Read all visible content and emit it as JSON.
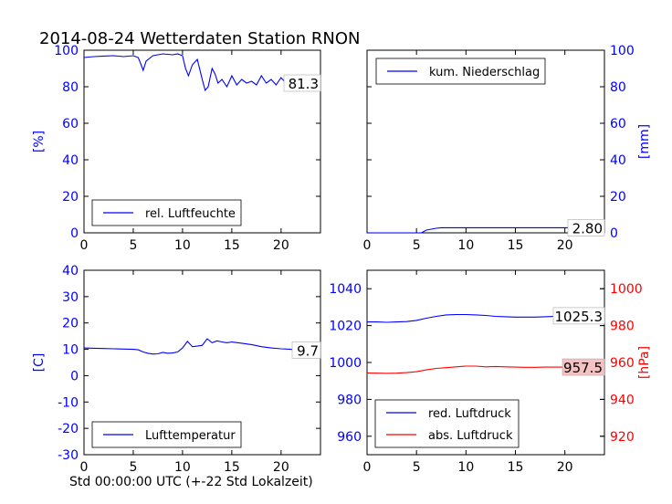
{
  "title": "2014-08-24 Wetterdaten Station RNON",
  "xlabel": "Std 00:00:00 UTC (+-22 Std Lokalzeit)",
  "colors": {
    "blue": "#0000ff",
    "red": "#ff0000",
    "value_bg_red": "#f4c2c2"
  },
  "chart_data": [
    {
      "type": "line",
      "name": "humidity",
      "ylabel": "[%]",
      "ylabel_side": "left",
      "xlim": [
        0,
        24
      ],
      "ylim": [
        0,
        100
      ],
      "xticks": [
        "0",
        "5",
        "10",
        "15",
        "20"
      ],
      "yticks": [
        "0",
        "20",
        "40",
        "60",
        "80",
        "100"
      ],
      "legend_position": "lower-left",
      "series": [
        {
          "name": "rel. Luftfeuchte",
          "color": "#0000ff",
          "x": [
            0,
            1,
            2,
            3,
            4,
            5,
            5.5,
            5.8,
            6.0,
            6.3,
            7,
            8,
            9,
            9.5,
            10,
            10.3,
            10.6,
            11,
            11.5,
            12,
            12.3,
            12.6,
            13,
            13.3,
            13.6,
            14,
            14.5,
            15,
            15.5,
            16,
            16.5,
            17,
            17.5,
            18,
            18.5,
            19,
            19.5,
            20,
            20.5,
            21,
            21.5,
            22,
            22.5,
            23,
            23.5,
            24
          ],
          "y": [
            96,
            96.5,
            96.8,
            97,
            96.5,
            97,
            96,
            92,
            89,
            94,
            97,
            98,
            97.5,
            98,
            97,
            90,
            86,
            92,
            95,
            84,
            78,
            80,
            90,
            87,
            82,
            84,
            80,
            86,
            81,
            84,
            82,
            83,
            81,
            86,
            82,
            84,
            81,
            85,
            82,
            84,
            83,
            82,
            85,
            81,
            83,
            82
          ]
        }
      ],
      "value_label": "81.3"
    },
    {
      "type": "line",
      "name": "precipitation",
      "ylabel": "[mm]",
      "ylabel_side": "right",
      "xlim": [
        0,
        24
      ],
      "ylim": [
        0,
        100
      ],
      "xticks": [
        "0",
        "5",
        "10",
        "15",
        "20"
      ],
      "yticks": [
        "0",
        "20",
        "40",
        "60",
        "80",
        "100"
      ],
      "legend_position": "upper-left",
      "series": [
        {
          "name": "kum. Niederschlag",
          "color": "#0000ff",
          "x": [
            0,
            5.5,
            6,
            6.5,
            7,
            7.5,
            24
          ],
          "y": [
            0,
            0,
            1.5,
            2.0,
            2.5,
            2.8,
            2.8
          ]
        }
      ],
      "value_label": "2.80"
    },
    {
      "type": "line",
      "name": "temperature",
      "ylabel": "[C]",
      "ylabel_side": "left",
      "xlim": [
        0,
        24
      ],
      "ylim": [
        -30,
        40
      ],
      "xticks": [
        "0",
        "5",
        "10",
        "15",
        "20"
      ],
      "yticks": [
        "-30",
        "-20",
        "-10",
        "0",
        "10",
        "20",
        "30",
        "40"
      ],
      "legend_position": "lower-left",
      "series": [
        {
          "name": "Lufttemperatur",
          "color": "#0000ff",
          "x": [
            0,
            1,
            2,
            3,
            4,
            5,
            5.5,
            6,
            6.5,
            7,
            7.5,
            8,
            8.5,
            9,
            9.5,
            10,
            10.5,
            11,
            11.5,
            12,
            12.5,
            13,
            13.5,
            14,
            14.5,
            15,
            16,
            17,
            18,
            19,
            20,
            21,
            22,
            23,
            24
          ],
          "y": [
            10.5,
            10.4,
            10.3,
            10.2,
            10.1,
            10,
            9.8,
            9,
            8.5,
            8.2,
            8.3,
            8.8,
            8.5,
            8.6,
            9,
            10.5,
            13,
            11,
            11.2,
            11.5,
            14,
            12.5,
            13.2,
            12.8,
            12.5,
            12.8,
            12.3,
            11.8,
            11,
            10.5,
            10.2,
            10,
            9.8,
            9.7,
            9.7
          ]
        }
      ],
      "value_label": "9.7"
    },
    {
      "type": "line",
      "name": "pressure",
      "ylabel": "[hPa]",
      "ylabel_side": "right",
      "xlim": [
        0,
        24
      ],
      "ylim": [
        950,
        1050
      ],
      "ylim_right": [
        910,
        1010
      ],
      "xticks": [
        "0",
        "5",
        "10",
        "15",
        "20"
      ],
      "yticks": [
        "960",
        "980",
        "1000",
        "1020",
        "1040"
      ],
      "yticks_right": [
        "920",
        "940",
        "960",
        "980",
        "1000"
      ],
      "legend_position": "lower-left",
      "series": [
        {
          "name": "red. Luftdruck",
          "color": "#0000ff",
          "axis": "left",
          "x": [
            0,
            1,
            2,
            3,
            4,
            5,
            6,
            7,
            8,
            9,
            10,
            11,
            12,
            13,
            14,
            15,
            16,
            17,
            18,
            19,
            20,
            21,
            22,
            23,
            24
          ],
          "y": [
            1022,
            1022,
            1021.8,
            1022,
            1022.2,
            1022.8,
            1024,
            1025,
            1025.8,
            1026,
            1026,
            1025.8,
            1025.5,
            1025,
            1024.8,
            1024.6,
            1024.6,
            1024.6,
            1024.8,
            1025,
            1025,
            1025.2,
            1025.3,
            1025.3,
            1025.3
          ]
        },
        {
          "name": "abs. Luftdruck",
          "color": "#ff0000",
          "axis": "right",
          "x": [
            0,
            1,
            2,
            3,
            4,
            5,
            6,
            7,
            8,
            9,
            10,
            11,
            12,
            13,
            14,
            15,
            16,
            17,
            18,
            19,
            20,
            21,
            22,
            23,
            24
          ],
          "y": [
            954.3,
            954.2,
            954.1,
            954.2,
            954.5,
            955,
            956,
            956.8,
            957.2,
            957.6,
            958,
            958,
            957.6,
            957.8,
            957.6,
            957.5,
            957.4,
            957.4,
            957.5,
            957.5,
            957.5,
            957.5,
            957.5,
            957.5,
            957.5
          ]
        }
      ],
      "value_label": "957.5",
      "value_label_2": "1025.3"
    }
  ]
}
